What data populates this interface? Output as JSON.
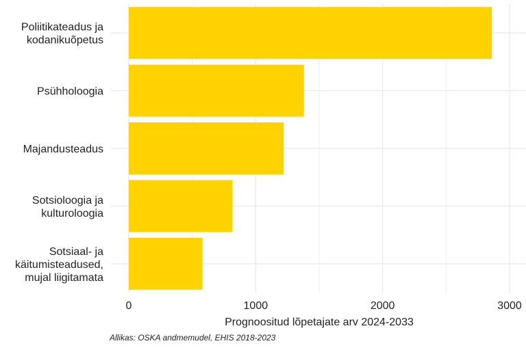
{
  "chart_data": {
    "type": "bar",
    "orientation": "horizontal",
    "categories": [
      [
        "Poliitikateadus ja",
        "kodanikuõpetus"
      ],
      [
        "Psühholoogia"
      ],
      [
        "Majandusteadus"
      ],
      [
        "Sotsioloogia ja",
        "kulturoloogia"
      ],
      [
        "Sotsiaal- ja",
        "käitumisteadused,",
        "mujal liigitamata"
      ]
    ],
    "values": [
      2860,
      1380,
      1220,
      815,
      580
    ],
    "xlim": [
      0,
      3000
    ],
    "xticks": [
      0,
      1000,
      2000,
      3000
    ],
    "xlabel": "Prognoositud lõpetajate arv 2024-2033",
    "ylabel": "",
    "grid": true,
    "bar_color": "#FFD200",
    "grid_color": "#EBEBEB"
  },
  "caption": "Allikas: OSKA andmemudel, EHIS 2018-2023"
}
